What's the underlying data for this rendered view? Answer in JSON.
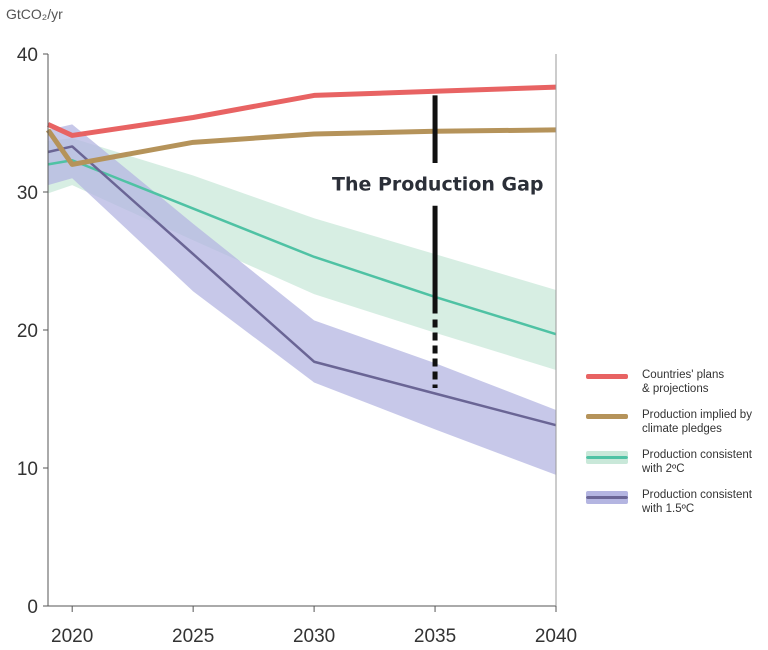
{
  "chart_data": {
    "type": "line",
    "unit_label": "GtCO₂/yr",
    "x_ticks": [
      "2020",
      "2025",
      "2030",
      "2035",
      "2040"
    ],
    "y_ticks": [
      "0",
      "10",
      "20",
      "30",
      "40"
    ],
    "xlim": [
      2019,
      2040
    ],
    "ylim": [
      0,
      40
    ],
    "grid": false,
    "legend_position": "right",
    "series": [
      {
        "name": "Countries' plans\n& projections",
        "color": "#e86363",
        "x": [
          2019,
          2020,
          2025,
          2030,
          2035,
          2040
        ],
        "y": [
          34.9,
          34.1,
          35.4,
          37.0,
          37.3,
          37.6
        ]
      },
      {
        "name": "Production implied by\n climate pledges",
        "color": "#b5935a",
        "x": [
          2019,
          2020,
          2025,
          2030,
          2035,
          2040
        ],
        "y": [
          34.5,
          32.0,
          33.6,
          34.2,
          34.4,
          34.5
        ]
      },
      {
        "name": "Production consistent\nwith 2ºC",
        "color": "#4fc2a4",
        "band_color": "#c9e8d9",
        "x": [
          2019,
          2020,
          2025,
          2030,
          2035,
          2040
        ],
        "y": [
          32.0,
          32.3,
          28.8,
          25.3,
          22.4,
          19.7
        ],
        "band_upper": [
          33.7,
          33.9,
          31.2,
          28.1,
          25.5,
          22.9
        ],
        "band_lower": [
          29.9,
          30.5,
          26.5,
          22.6,
          19.8,
          17.1
        ]
      },
      {
        "name": "Production consistent\nwith 1.5ºC",
        "color": "#6a6595",
        "band_color": "#b4b5e1",
        "x": [
          2019,
          2020,
          2025,
          2030,
          2035,
          2040
        ],
        "y": [
          32.9,
          33.3,
          25.5,
          17.7,
          15.4,
          13.1
        ],
        "band_upper": [
          34.5,
          34.9,
          27.7,
          20.7,
          17.6,
          14.2
        ],
        "band_lower": [
          30.5,
          31.0,
          22.8,
          16.2,
          12.8,
          9.5
        ]
      }
    ],
    "annotation": {
      "text": "The Production Gap",
      "x": 2035,
      "y_top": 37.0,
      "y_bottom": 15.8
    }
  }
}
